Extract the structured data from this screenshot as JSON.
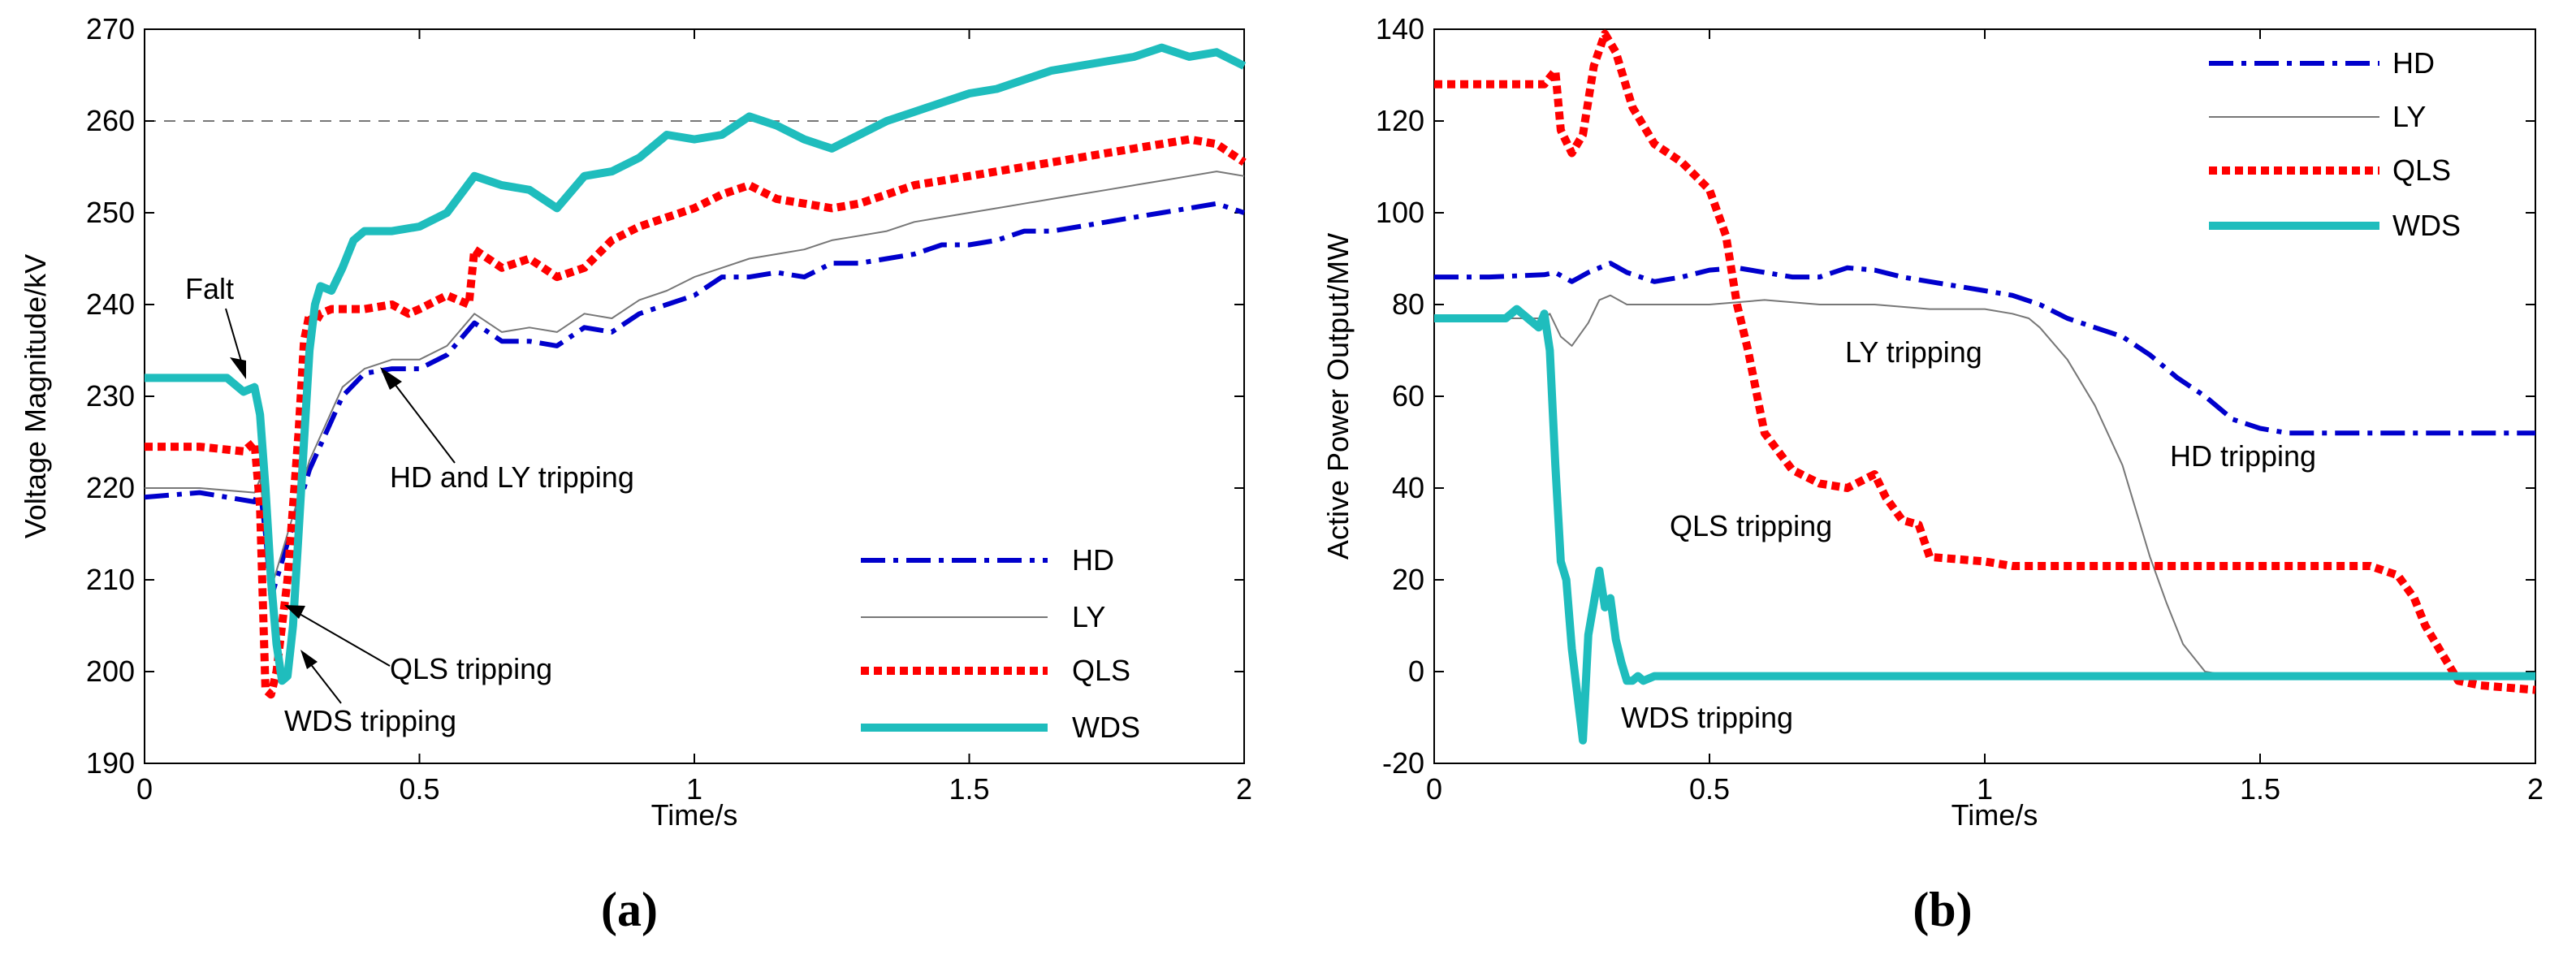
{
  "chart_data": [
    {
      "type": "line",
      "panel_label": "(a)",
      "xlabel": "Time/s",
      "ylabel": "Voltage Magnitude/kV",
      "xlim": [
        0,
        2
      ],
      "ylim": [
        190,
        270
      ],
      "xticks": [
        "0",
        "0.5",
        "1",
        "1.5",
        "2"
      ],
      "yticks": [
        "190",
        "200",
        "210",
        "220",
        "230",
        "240",
        "250",
        "260",
        "270"
      ],
      "reference_line": 260,
      "legend_position": "bottom-right",
      "series": [
        {
          "name": "HD",
          "color": "#0000cc",
          "style": "dashdot",
          "x": [
            0,
            0.1,
            0.2,
            0.21,
            0.22,
            0.23,
            0.24,
            0.26,
            0.28,
            0.3,
            0.33,
            0.36,
            0.4,
            0.45,
            0.5,
            0.55,
            0.6,
            0.65,
            0.7,
            0.75,
            0.8,
            0.85,
            0.9,
            0.95,
            1.0,
            1.05,
            1.1,
            1.15,
            1.2,
            1.25,
            1.3,
            1.35,
            1.4,
            1.45,
            1.5,
            1.55,
            1.6,
            1.65,
            1.7,
            1.75,
            1.8,
            1.85,
            1.9,
            1.95,
            2.0
          ],
          "y": [
            219,
            219.5,
            218.5,
            220,
            215,
            208,
            210,
            214,
            218,
            222,
            226,
            230,
            232.5,
            233,
            233,
            234.5,
            238,
            236,
            236,
            235.5,
            237.5,
            237,
            239,
            240,
            241,
            243,
            243,
            243.5,
            243,
            244.5,
            244.5,
            245,
            245.5,
            246.5,
            246.5,
            247,
            248,
            248,
            248.5,
            249,
            249.5,
            250,
            250.5,
            251,
            250
          ]
        },
        {
          "name": "LY",
          "color": "#777777",
          "style": "solid-thin",
          "x": [
            0,
            0.1,
            0.2,
            0.21,
            0.22,
            0.23,
            0.24,
            0.26,
            0.28,
            0.3,
            0.33,
            0.36,
            0.4,
            0.45,
            0.5,
            0.55,
            0.6,
            0.65,
            0.7,
            0.75,
            0.8,
            0.85,
            0.9,
            0.95,
            1.0,
            1.05,
            1.1,
            1.15,
            1.2,
            1.25,
            1.3,
            1.35,
            1.4,
            1.45,
            1.5,
            1.55,
            1.6,
            1.65,
            1.7,
            1.75,
            1.8,
            1.85,
            1.9,
            1.95,
            2.0
          ],
          "y": [
            220,
            220,
            219.5,
            221,
            216,
            209,
            211,
            215,
            219,
            223,
            227,
            231,
            233,
            234,
            234,
            235.5,
            239,
            237,
            237.5,
            237,
            239,
            238.5,
            240.5,
            241.5,
            243,
            244,
            245,
            245.5,
            246,
            247,
            247.5,
            248,
            249,
            249.5,
            250,
            250.5,
            251,
            251.5,
            252,
            252.5,
            253,
            253.5,
            254,
            254.5,
            254
          ]
        },
        {
          "name": "QLS",
          "color": "#ff0000",
          "style": "dotted-thick",
          "x": [
            0,
            0.1,
            0.18,
            0.2,
            0.21,
            0.22,
            0.23,
            0.24,
            0.26,
            0.28,
            0.29,
            0.3,
            0.31,
            0.32,
            0.34,
            0.36,
            0.4,
            0.45,
            0.48,
            0.5,
            0.55,
            0.59,
            0.6,
            0.65,
            0.7,
            0.75,
            0.8,
            0.85,
            0.9,
            0.95,
            1.0,
            1.05,
            1.1,
            1.15,
            1.2,
            1.25,
            1.3,
            1.35,
            1.4,
            1.45,
            1.5,
            1.55,
            1.6,
            1.65,
            1.7,
            1.75,
            1.8,
            1.85,
            1.9,
            1.95,
            2.0
          ],
          "y": [
            224.5,
            224.5,
            224,
            225,
            218,
            198,
            197.5,
            200,
            210,
            226,
            236,
            239,
            238,
            239,
            239.5,
            239.5,
            239.5,
            240,
            239,
            239.5,
            241,
            240,
            246,
            244,
            245,
            243,
            244,
            247,
            248.5,
            249.5,
            250.5,
            252,
            253,
            251.5,
            251,
            250.5,
            251,
            252,
            253,
            253.5,
            254,
            254.5,
            255,
            255.5,
            256,
            256.5,
            257,
            257.5,
            258,
            257.5,
            255.5
          ]
        },
        {
          "name": "WDS",
          "color": "#1fbdbd",
          "style": "solid-thick",
          "x": [
            0,
            0.05,
            0.1,
            0.15,
            0.18,
            0.2,
            0.21,
            0.22,
            0.23,
            0.24,
            0.25,
            0.26,
            0.27,
            0.28,
            0.29,
            0.3,
            0.31,
            0.32,
            0.34,
            0.36,
            0.38,
            0.4,
            0.45,
            0.5,
            0.55,
            0.6,
            0.65,
            0.7,
            0.75,
            0.8,
            0.85,
            0.9,
            0.95,
            1.0,
            1.05,
            1.1,
            1.15,
            1.2,
            1.25,
            1.3,
            1.35,
            1.4,
            1.45,
            1.5,
            1.55,
            1.6,
            1.65,
            1.7,
            1.75,
            1.8,
            1.85,
            1.9,
            1.95,
            2.0
          ],
          "y": [
            232,
            232,
            232,
            232,
            230.5,
            231,
            228,
            220,
            210,
            203,
            199,
            199.5,
            205,
            215,
            225,
            235,
            240,
            242,
            241.5,
            244,
            247,
            248,
            248,
            248.5,
            250,
            254,
            253,
            252.5,
            250.5,
            254,
            254.5,
            256,
            258.5,
            258,
            258.5,
            260.5,
            259.5,
            258,
            257,
            258.5,
            260,
            261,
            262,
            263,
            263.5,
            264.5,
            265.5,
            266,
            266.5,
            267,
            268,
            267,
            267.5,
            266
          ]
        }
      ],
      "annotations": [
        "Falt",
        "HD and LY tripping",
        "QLS tripping",
        "WDS tripping"
      ]
    },
    {
      "type": "line",
      "panel_label": "(b)",
      "xlabel": "Time/s",
      "ylabel": "Active Power Output/MW",
      "xlim": [
        0,
        2
      ],
      "ylim": [
        -20,
        140
      ],
      "xticks": [
        "0",
        "0.5",
        "1",
        "1.5",
        "2"
      ],
      "yticks": [
        "-20",
        "0",
        "20",
        "40",
        "60",
        "80",
        "100",
        "120",
        "140"
      ],
      "legend_position": "top-right",
      "series": [
        {
          "name": "HD",
          "color": "#0000cc",
          "style": "dashdot",
          "x": [
            0,
            0.1,
            0.2,
            0.22,
            0.25,
            0.28,
            0.3,
            0.32,
            0.35,
            0.4,
            0.45,
            0.5,
            0.55,
            0.6,
            0.65,
            0.7,
            0.75,
            0.8,
            0.85,
            0.9,
            0.95,
            1.0,
            1.05,
            1.1,
            1.15,
            1.2,
            1.25,
            1.3,
            1.35,
            1.4,
            1.45,
            1.5,
            1.55,
            1.6,
            1.7,
            1.8,
            1.9,
            2.0
          ],
          "y": [
            86,
            86,
            86.5,
            87,
            85,
            87,
            88,
            89,
            87,
            85,
            86,
            87.5,
            88,
            87,
            86,
            86,
            88,
            87.5,
            86,
            85,
            84,
            83,
            82,
            80,
            77,
            75,
            73,
            69,
            64,
            60,
            55,
            53,
            52,
            52,
            52,
            52,
            52,
            52
          ]
        },
        {
          "name": "LY",
          "color": "#777777",
          "style": "solid-thin",
          "x": [
            0,
            0.1,
            0.2,
            0.21,
            0.23,
            0.25,
            0.28,
            0.3,
            0.32,
            0.35,
            0.4,
            0.5,
            0.6,
            0.7,
            0.8,
            0.9,
            1.0,
            1.05,
            1.08,
            1.1,
            1.15,
            1.2,
            1.25,
            1.28,
            1.3,
            1.33,
            1.36,
            1.4,
            1.45,
            1.5,
            1.6,
            1.7,
            1.8,
            1.9,
            2.0
          ],
          "y": [
            77,
            77,
            77,
            78,
            73,
            71,
            76,
            81,
            82,
            80,
            80,
            80,
            81,
            80,
            80,
            79,
            79,
            78,
            77,
            75,
            68,
            58,
            45,
            33,
            25,
            15,
            6,
            0,
            -1,
            -1,
            -1,
            -1,
            -1,
            -1,
            -1
          ]
        },
        {
          "name": "QLS",
          "color": "#ff0000",
          "style": "dotted-thick",
          "x": [
            0,
            0.1,
            0.2,
            0.22,
            0.23,
            0.25,
            0.27,
            0.29,
            0.31,
            0.33,
            0.36,
            0.4,
            0.45,
            0.5,
            0.53,
            0.55,
            0.57,
            0.6,
            0.65,
            0.7,
            0.75,
            0.8,
            0.82,
            0.85,
            0.88,
            0.9,
            1.0,
            1.05,
            1.1,
            1.2,
            1.3,
            1.4,
            1.5,
            1.6,
            1.7,
            1.75,
            1.78,
            1.8,
            1.83,
            1.86,
            1.9,
            2.0
          ],
          "y": [
            128,
            128,
            128,
            131,
            118,
            113,
            117,
            132,
            139,
            135,
            123,
            115,
            111,
            105,
            95,
            80,
            70,
            52,
            44,
            41,
            40,
            43,
            38,
            33,
            32,
            25,
            24,
            23,
            23,
            23,
            23,
            23,
            23,
            23,
            23,
            21,
            16,
            10,
            4,
            -2,
            -3,
            -4
          ]
        },
        {
          "name": "WDS",
          "color": "#1fbdbd",
          "style": "solid-thick",
          "x": [
            0,
            0.05,
            0.1,
            0.13,
            0.15,
            0.17,
            0.19,
            0.2,
            0.21,
            0.22,
            0.23,
            0.24,
            0.25,
            0.26,
            0.27,
            0.28,
            0.29,
            0.3,
            0.31,
            0.32,
            0.33,
            0.34,
            0.35,
            0.36,
            0.37,
            0.38,
            0.4,
            0.5,
            0.6,
            0.8,
            1.0,
            1.2,
            1.4,
            1.6,
            1.8,
            2.0
          ],
          "y": [
            77,
            77,
            77,
            77,
            79,
            77,
            75,
            78,
            70,
            45,
            24,
            20,
            5,
            -5,
            -15,
            8,
            15,
            22,
            14,
            16,
            7,
            2,
            -2,
            -2,
            -1,
            -2,
            -1,
            -1,
            -1,
            -1,
            -1,
            -1,
            -1,
            -1,
            -1,
            -1
          ]
        }
      ],
      "annotations": [
        "LY tripping",
        "HD tripping",
        "QLS tripping",
        "WDS tripping"
      ]
    }
  ]
}
